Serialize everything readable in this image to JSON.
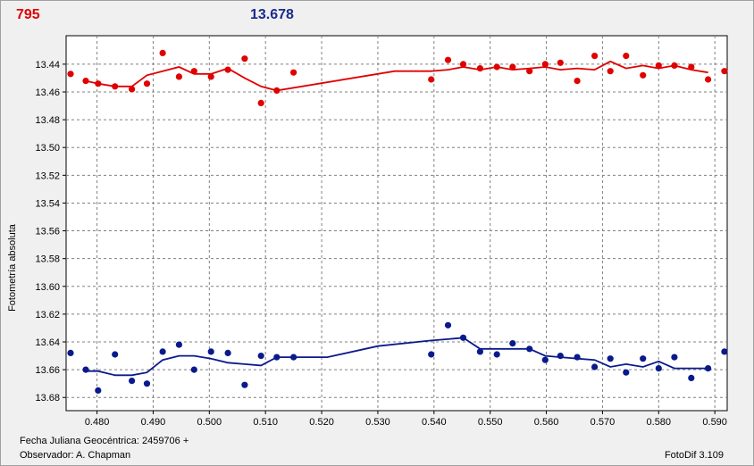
{
  "header": {
    "object_label": "795",
    "magnitude_label": "13.678"
  },
  "footer": {
    "julian_date": "Fecha Juliana Geocéntrica: 2459706 +",
    "observer": "Observador: A. Chapman",
    "software": "FotoDif 3.109"
  },
  "colors": {
    "red_series": "#e00000",
    "blue_series": "#0a1a8c",
    "grid": "#808080",
    "plot_bg": "#ffffff"
  },
  "chart_data": {
    "type": "scatter",
    "title": "",
    "xlabel": "",
    "ylabel": "Fotometría absoluta",
    "xlim": [
      0.4745,
      0.5922
    ],
    "ylim": [
      13.4195,
      13.6895
    ],
    "y_inverted": true,
    "grid": true,
    "x_ticks": [
      "0.480",
      "0.490",
      "0.500",
      "0.510",
      "0.520",
      "0.530",
      "0.540",
      "0.550",
      "0.560",
      "0.570",
      "0.580",
      "0.590"
    ],
    "y_ticks": [
      "13.44",
      "13.46",
      "13.48",
      "13.50",
      "13.52",
      "13.54",
      "13.56",
      "13.58",
      "13.60",
      "13.62",
      "13.64",
      "13.66",
      "13.68"
    ],
    "series": [
      {
        "color": "#e00000",
        "points": [
          [
            0.4753,
            13.447
          ],
          [
            0.478,
            13.452
          ],
          [
            0.4802,
            13.454
          ],
          [
            0.4832,
            13.456
          ],
          [
            0.4862,
            13.458
          ],
          [
            0.4889,
            13.454
          ],
          [
            0.4917,
            13.432
          ],
          [
            0.4946,
            13.449
          ],
          [
            0.4973,
            13.445
          ],
          [
            0.5003,
            13.449
          ],
          [
            0.5033,
            13.444
          ],
          [
            0.5063,
            13.436
          ],
          [
            0.5092,
            13.468
          ],
          [
            0.512,
            13.459
          ],
          [
            0.515,
            13.446
          ],
          [
            0.5395,
            13.451
          ],
          [
            0.5425,
            13.437
          ],
          [
            0.5452,
            13.44
          ],
          [
            0.5482,
            13.443
          ],
          [
            0.5512,
            13.442
          ],
          [
            0.554,
            13.442
          ],
          [
            0.557,
            13.445
          ],
          [
            0.5598,
            13.44
          ],
          [
            0.5625,
            13.439
          ],
          [
            0.5655,
            13.452
          ],
          [
            0.5686,
            13.434
          ],
          [
            0.5714,
            13.445
          ],
          [
            0.5742,
            13.434
          ],
          [
            0.5772,
            13.448
          ],
          [
            0.58,
            13.441
          ],
          [
            0.5828,
            13.441
          ],
          [
            0.5858,
            13.442
          ],
          [
            0.5888,
            13.451
          ],
          [
            0.5917,
            13.445
          ]
        ],
        "trend": [
          [
            0.478,
            13.452
          ],
          [
            0.4802,
            13.454
          ],
          [
            0.4832,
            13.456
          ],
          [
            0.4862,
            13.456
          ],
          [
            0.4889,
            13.448
          ],
          [
            0.4917,
            13.445
          ],
          [
            0.4946,
            13.442
          ],
          [
            0.4973,
            13.447
          ],
          [
            0.5003,
            13.447
          ],
          [
            0.5033,
            13.443
          ],
          [
            0.5063,
            13.45
          ],
          [
            0.5092,
            13.456
          ],
          [
            0.512,
            13.459
          ],
          [
            0.533,
            13.445
          ],
          [
            0.5395,
            13.445
          ],
          [
            0.5425,
            13.444
          ],
          [
            0.5452,
            13.442
          ],
          [
            0.5482,
            13.444
          ],
          [
            0.5512,
            13.442
          ],
          [
            0.554,
            13.444
          ],
          [
            0.557,
            13.443
          ],
          [
            0.5598,
            13.442
          ],
          [
            0.5625,
            13.444
          ],
          [
            0.5655,
            13.443
          ],
          [
            0.5686,
            13.444
          ],
          [
            0.5714,
            13.438
          ],
          [
            0.5742,
            13.443
          ],
          [
            0.5772,
            13.441
          ],
          [
            0.58,
            13.443
          ],
          [
            0.5828,
            13.441
          ],
          [
            0.5858,
            13.444
          ],
          [
            0.5888,
            13.446
          ]
        ]
      },
      {
        "color": "#0a1a8c",
        "points": [
          [
            0.4753,
            13.648
          ],
          [
            0.478,
            13.66
          ],
          [
            0.4802,
            13.675
          ],
          [
            0.4832,
            13.649
          ],
          [
            0.4862,
            13.668
          ],
          [
            0.4889,
            13.67
          ],
          [
            0.4917,
            13.647
          ],
          [
            0.4946,
            13.642
          ],
          [
            0.4973,
            13.66
          ],
          [
            0.5003,
            13.647
          ],
          [
            0.5033,
            13.648
          ],
          [
            0.5063,
            13.671
          ],
          [
            0.5092,
            13.65
          ],
          [
            0.512,
            13.651
          ],
          [
            0.515,
            13.651
          ],
          [
            0.5395,
            13.649
          ],
          [
            0.5425,
            13.628
          ],
          [
            0.5452,
            13.637
          ],
          [
            0.5482,
            13.647
          ],
          [
            0.5512,
            13.649
          ],
          [
            0.554,
            13.641
          ],
          [
            0.557,
            13.645
          ],
          [
            0.5598,
            13.653
          ],
          [
            0.5625,
            13.65
          ],
          [
            0.5655,
            13.651
          ],
          [
            0.5686,
            13.658
          ],
          [
            0.5714,
            13.652
          ],
          [
            0.5742,
            13.662
          ],
          [
            0.5772,
            13.652
          ],
          [
            0.58,
            13.659
          ],
          [
            0.5828,
            13.651
          ],
          [
            0.5858,
            13.666
          ],
          [
            0.5888,
            13.659
          ],
          [
            0.5917,
            13.647
          ]
        ],
        "trend": [
          [
            0.478,
            13.661
          ],
          [
            0.4802,
            13.661
          ],
          [
            0.4832,
            13.664
          ],
          [
            0.4862,
            13.664
          ],
          [
            0.4889,
            13.662
          ],
          [
            0.4917,
            13.653
          ],
          [
            0.4946,
            13.65
          ],
          [
            0.4973,
            13.65
          ],
          [
            0.5003,
            13.652
          ],
          [
            0.5033,
            13.655
          ],
          [
            0.5063,
            13.656
          ],
          [
            0.5092,
            13.657
          ],
          [
            0.512,
            13.651
          ],
          [
            0.515,
            13.651
          ],
          [
            0.521,
            13.651
          ],
          [
            0.53,
            13.643
          ],
          [
            0.5395,
            13.639
          ],
          [
            0.5425,
            13.638
          ],
          [
            0.5452,
            13.637
          ],
          [
            0.5482,
            13.645
          ],
          [
            0.5512,
            13.645
          ],
          [
            0.554,
            13.645
          ],
          [
            0.557,
            13.645
          ],
          [
            0.5598,
            13.65
          ],
          [
            0.5625,
            13.651
          ],
          [
            0.5655,
            13.652
          ],
          [
            0.5686,
            13.653
          ],
          [
            0.5714,
            13.658
          ],
          [
            0.5742,
            13.656
          ],
          [
            0.5772,
            13.658
          ],
          [
            0.58,
            13.654
          ],
          [
            0.5828,
            13.659
          ],
          [
            0.5858,
            13.659
          ],
          [
            0.5888,
            13.659
          ]
        ]
      }
    ]
  }
}
